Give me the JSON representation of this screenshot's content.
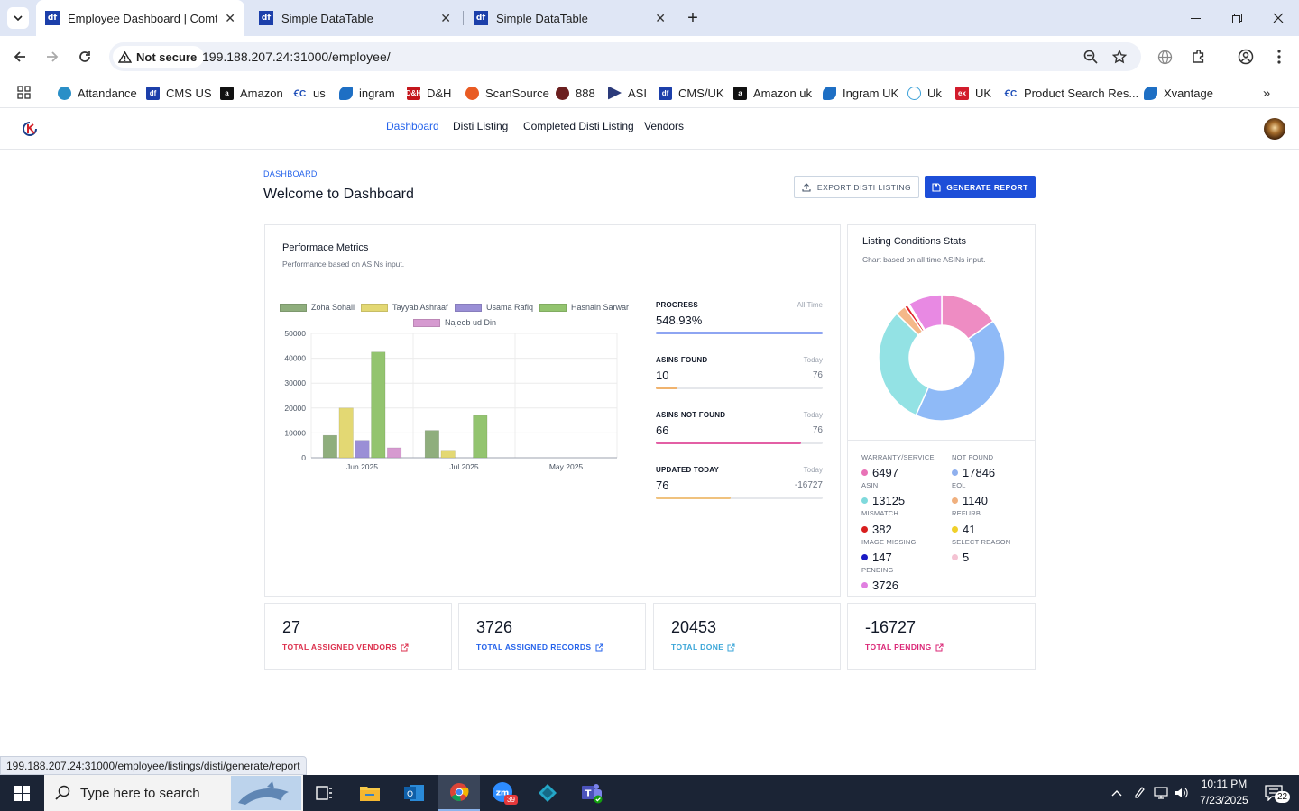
{
  "browser": {
    "tabs": [
      {
        "title": "Employee Dashboard | Comtan",
        "favicon": "df"
      },
      {
        "title": "Simple DataTable",
        "favicon": "df"
      },
      {
        "title": "Simple DataTable",
        "favicon": "df"
      }
    ],
    "security_label": "Not secure",
    "url": "199.188.207.24:31000/employee/",
    "bookmarks": [
      "Attandance",
      "CMS US",
      "Amazon",
      "us",
      "ingram",
      "D&H",
      "ScanSource",
      "888",
      "ASI",
      "CMS/UK",
      "Amazon uk",
      "Ingram UK",
      "Uk",
      "UK",
      "Product Search Res...",
      "Xvantage"
    ],
    "status_url": "199.188.207.24:31000/employee/listings/disti/generate/report"
  },
  "nav": {
    "links": [
      "Dashboard",
      "Disti Listing",
      "Completed Disti Listing",
      "Vendors"
    ],
    "active": "Dashboard"
  },
  "header": {
    "breadcrumb": "DASHBOARD",
    "title": "Welcome to Dashboard",
    "export_label": "EXPORT DISTI LISTING",
    "generate_label": "GENERATE REPORT"
  },
  "performance": {
    "title": "Performace Metrics",
    "subtitle": "Performance based on ASINs input.",
    "metrics": [
      {
        "label": "PROGRESS",
        "period": "All Time",
        "value": "548.93%",
        "aux": "",
        "fill": 1.0,
        "color": "#8ea5f2"
      },
      {
        "label": "ASINS FOUND",
        "period": "Today",
        "value": "10",
        "aux": "76",
        "fill": 0.13,
        "color": "#f0b36e"
      },
      {
        "label": "ASINS NOT FOUND",
        "period": "Today",
        "value": "66",
        "aux": "76",
        "fill": 0.87,
        "color": "#e35fa5"
      },
      {
        "label": "UPDATED TODAY",
        "period": "Today",
        "value": "76",
        "aux": "-16727",
        "fill": 0.45,
        "color": "#f0c27e"
      }
    ]
  },
  "chart_data": {
    "type": "bar",
    "categories": [
      "Jun 2025",
      "Jul 2025",
      "May 2025"
    ],
    "ylim": [
      0,
      50000
    ],
    "yticks": [
      "0",
      "10000",
      "20000",
      "30000",
      "40000",
      "50000"
    ],
    "legend_position": "top",
    "series": [
      {
        "name": "Zoha Sohail",
        "color": "#8fae7d",
        "values": [
          9000,
          11000,
          0
        ]
      },
      {
        "name": "Tayyab Ashraaf",
        "color": "#e3d873",
        "values": [
          20000,
          3000,
          0
        ]
      },
      {
        "name": "Usama Rafiq",
        "color": "#9a8fd6",
        "values": [
          7000,
          0,
          0
        ]
      },
      {
        "name": "Hasnain Sarwar",
        "color": "#93c46f",
        "values": [
          42500,
          17000,
          0
        ]
      },
      {
        "name": "Najeeb ud Din",
        "color": "#d69ad0",
        "values": [
          4000,
          0,
          0
        ]
      }
    ]
  },
  "conditions": {
    "title": "Listing Conditions Stats",
    "subtitle": "Chart based on all time ASINs input.",
    "donut": [
      {
        "name": "WARRANTY/SERVICE",
        "value": 6497,
        "color": "#ee8cc3"
      },
      {
        "name": "NOT FOUND",
        "value": 17846,
        "color": "#8fbaf7"
      },
      {
        "name": "ASIN MISMATCH",
        "value": 13125,
        "color": "#93e2e4"
      },
      {
        "name": "EOL",
        "value": 1140,
        "color": "#f4b889"
      },
      {
        "name": "REFURB",
        "value": 382,
        "color": "#e0242a"
      },
      {
        "name": "IMAGE MISSING",
        "value": 41,
        "color": "#f2d44a"
      },
      {
        "name": "SELECT REASON",
        "value": 147,
        "color": "#2020c8"
      },
      {
        "name": "PENDING",
        "value": 5,
        "color": "#f4c7d4"
      },
      {
        "name": "",
        "value": 3726,
        "color": "#e889e3"
      }
    ],
    "stats": [
      {
        "top": "WARRANTY/SERVICE",
        "value": "6497",
        "below": "ASIN",
        "color": "#e872b6"
      },
      {
        "top": "NOT FOUND",
        "value": "17846",
        "below": "EOL",
        "color": "#8fb0ee"
      },
      {
        "top": "",
        "value": "13125",
        "below": "MISMATCH",
        "color": "#7fd9dc"
      },
      {
        "top": "",
        "value": "1140",
        "below": "REFURB",
        "color": "#f0b07e"
      },
      {
        "top": "",
        "value": "382",
        "below": "IMAGE MISSING",
        "color": "#d81e1e"
      },
      {
        "top": "",
        "value": "41",
        "below": "SELECT REASON",
        "color": "#f0d02a"
      },
      {
        "top": "",
        "value": "147",
        "below": "PENDING",
        "color": "#1a1ac4"
      },
      {
        "top": "",
        "value": "5",
        "below": "",
        "color": "#f4c3d3"
      },
      {
        "top": "",
        "value": "3726",
        "below": "",
        "color": "#e07fe0"
      }
    ]
  },
  "bottom_cards": [
    {
      "value": "27",
      "label": "TOTAL ASSIGNED VENDORS",
      "color": "#dc2f4c"
    },
    {
      "value": "3726",
      "label": "TOTAL ASSIGNED RECORDS",
      "color": "#2563eb"
    },
    {
      "value": "20453",
      "label": "TOTAL DONE",
      "color": "#3ba6d8"
    },
    {
      "value": "-16727",
      "label": "TOTAL PENDING",
      "color": "#db2777"
    }
  ],
  "taskbar": {
    "search_placeholder": "Type here to search",
    "time": "10:11 PM",
    "date": "7/23/2025",
    "notifications": "22",
    "zoom_badge": "39"
  }
}
